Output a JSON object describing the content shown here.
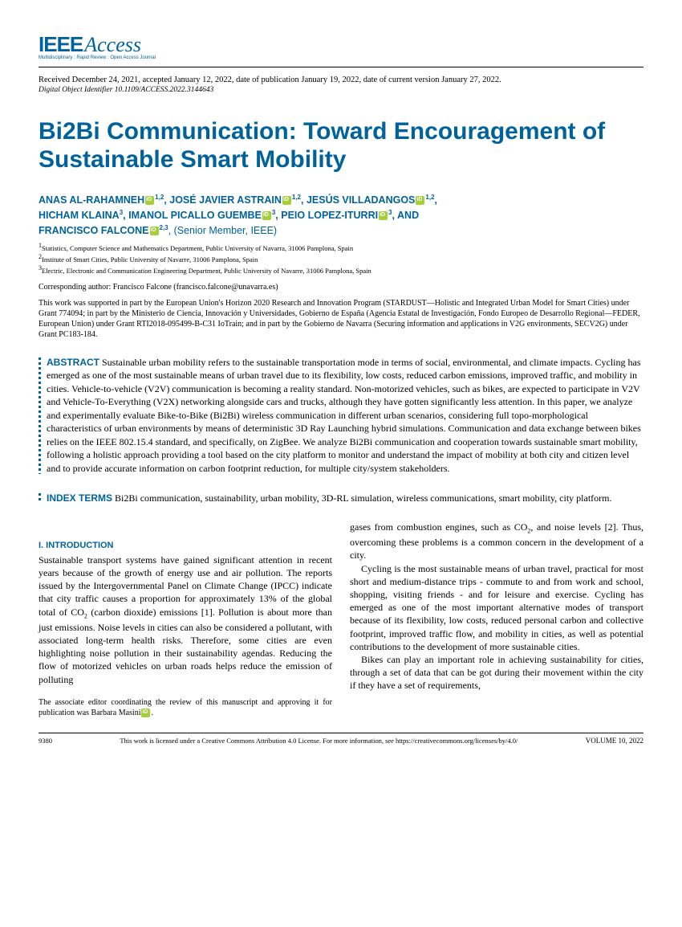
{
  "logo": {
    "ieee": "IEEE",
    "access": "Access",
    "tagline": "Multidisciplinary : Rapid Review : Open Access Journal"
  },
  "dates": "Received December 24, 2021, accepted January 12, 2022, date of publication January 19, 2022, date of current version January 27, 2022.",
  "doi": "Digital Object Identifier 10.1109/ACCESS.2022.3144643",
  "title": "Bi2Bi Communication: Toward Encouragement of Sustainable Smart Mobility",
  "authors": {
    "a1": "ANAS AL-RAHAMNEH",
    "s1": "1,2",
    "a2": "JOSÉ JAVIER ASTRAIN",
    "s2": "1,2",
    "a3": "JESÚS VILLADANGOS",
    "s3": "1,2",
    "a4": "HICHAM KLAINA",
    "s4": "3",
    "a5": "IMANOL PICALLO GUEMBE",
    "s5": "3",
    "a6": "PEIO LOPEZ-ITURRI",
    "s6": "3",
    "a7": "FRANCISCO FALCONE",
    "s7": "2,3",
    "member": ", (Senior Member, IEEE)",
    "and": "AND"
  },
  "affiliations": {
    "l1": "1Statistics, Computer Science and Mathematics Department, Public University of Navarra, 31006 Pamplona, Spain",
    "l2": "2Institute of Smart Cities, Public University of Navarre, 31006 Pamplona, Spain",
    "l3": "3Electric, Electronic and Communication Engineering Department, Public University of Navarre, 31006 Pamplona, Spain"
  },
  "corresponding": "Corresponding author: Francisco Falcone (francisco.falcone@unavarra.es)",
  "funding": "This work was supported in part by the European Union's Horizon 2020 Research and Innovation Program (STARDUST—Holistic and Integrated Urban Model for Smart Cities) under Grant 774094; in part by the Ministerio de Ciencia, Innovación y Universidades, Gobierno de España (Agencia Estatal de Investigación, Fondo Europeo de Desarrollo Regional—FEDER, European Union) under Grant RTI2018-095499-B-C31 IoTrain; and in part by the Gobierno de Navarra (Securing information and applications in V2G environments, SECV2G) under Grant PC183-184.",
  "abstract": {
    "label": "ABSTRACT",
    "text": " Sustainable urban mobility refers to the sustainable transportation mode in terms of social, environmental, and climate impacts. Cycling has emerged as one of the most sustainable means of urban travel due to its flexibility, low costs, reduced carbon emissions, improved traffic, and mobility in cities. Vehicle-to-vehicle (V2V) communication is becoming a reality standard. Non-motorized vehicles, such as bikes, are expected to participate in V2V and Vehicle-To-Everything (V2X) networking alongside cars and trucks, although they have gotten significantly less attention. In this paper, we analyze and experimentally evaluate Bike-to-Bike (Bi2Bi) wireless communication in different urban scenarios, considering full topo-morphological characteristics of urban environments by means of deterministic 3D Ray Launching hybrid simulations. Communication and data exchange between bikes relies on the IEEE 802.15.4 standard, and specifically, on ZigBee. We analyze Bi2Bi communication and cooperation towards sustainable smart mobility, following a holistic approach providing a tool based on the city platform to monitor and understand the impact of mobility at both city and citizen level and to provide accurate information on carbon footprint reduction, for multiple city/system stakeholders."
  },
  "index": {
    "label": "INDEX TERMS",
    "text": " Bi2Bi communication, sustainability, urban mobility, 3D-RL simulation, wireless communications, smart mobility, city platform."
  },
  "section_heading": "I. INTRODUCTION",
  "col1": {
    "p1a": "Sustainable transport systems have gained significant attention in recent years because of the growth of energy use and air pollution. The reports issued by the Intergovernmental Panel on Climate Change (IPCC) indicate that city traffic causes a proportion for approximately 13% of the global total of CO",
    "p1b": " (carbon dioxide) emissions [1]. Pollution is about more than just emissions. Noise levels in cities can also be considered a pollutant, with associated long-term health risks. Therefore, some cities are even highlighting noise pollution in their sustainability agendas. Reducing the flow of motorized vehicles on urban roads helps reduce the emission of polluting",
    "editor": "The associate editor coordinating the review of this manuscript and approving it for publication was Barbara Masini"
  },
  "col2": {
    "p1a": "gases from combustion engines, such as CO",
    "p1b": ", and noise levels [2]. Thus, overcoming these problems is a common concern in the development of a city.",
    "p2": "Cycling is the most sustainable means of urban travel, practical for most short and medium-distance trips - commute to and from work and school, shopping, visiting friends - and for leisure and exercise. Cycling has emerged as one of the most important alternative modes of transport because of its flexibility, low costs, reduced personal carbon and collective footprint, improved traffic flow, and mobility in cities, as well as potential contributions to the development of more sustainable cities.",
    "p3": "Bikes can play an important role in achieving sustainability for cities, through a set of data that can be got during their movement within the city if they have a set of requirements,"
  },
  "footer": {
    "page": "9380",
    "license": "This work is licensed under a Creative Commons Attribution 4.0 License. For more information, see https://creativecommons.org/licenses/by/4.0/",
    "volume": "VOLUME 10, 2022"
  }
}
